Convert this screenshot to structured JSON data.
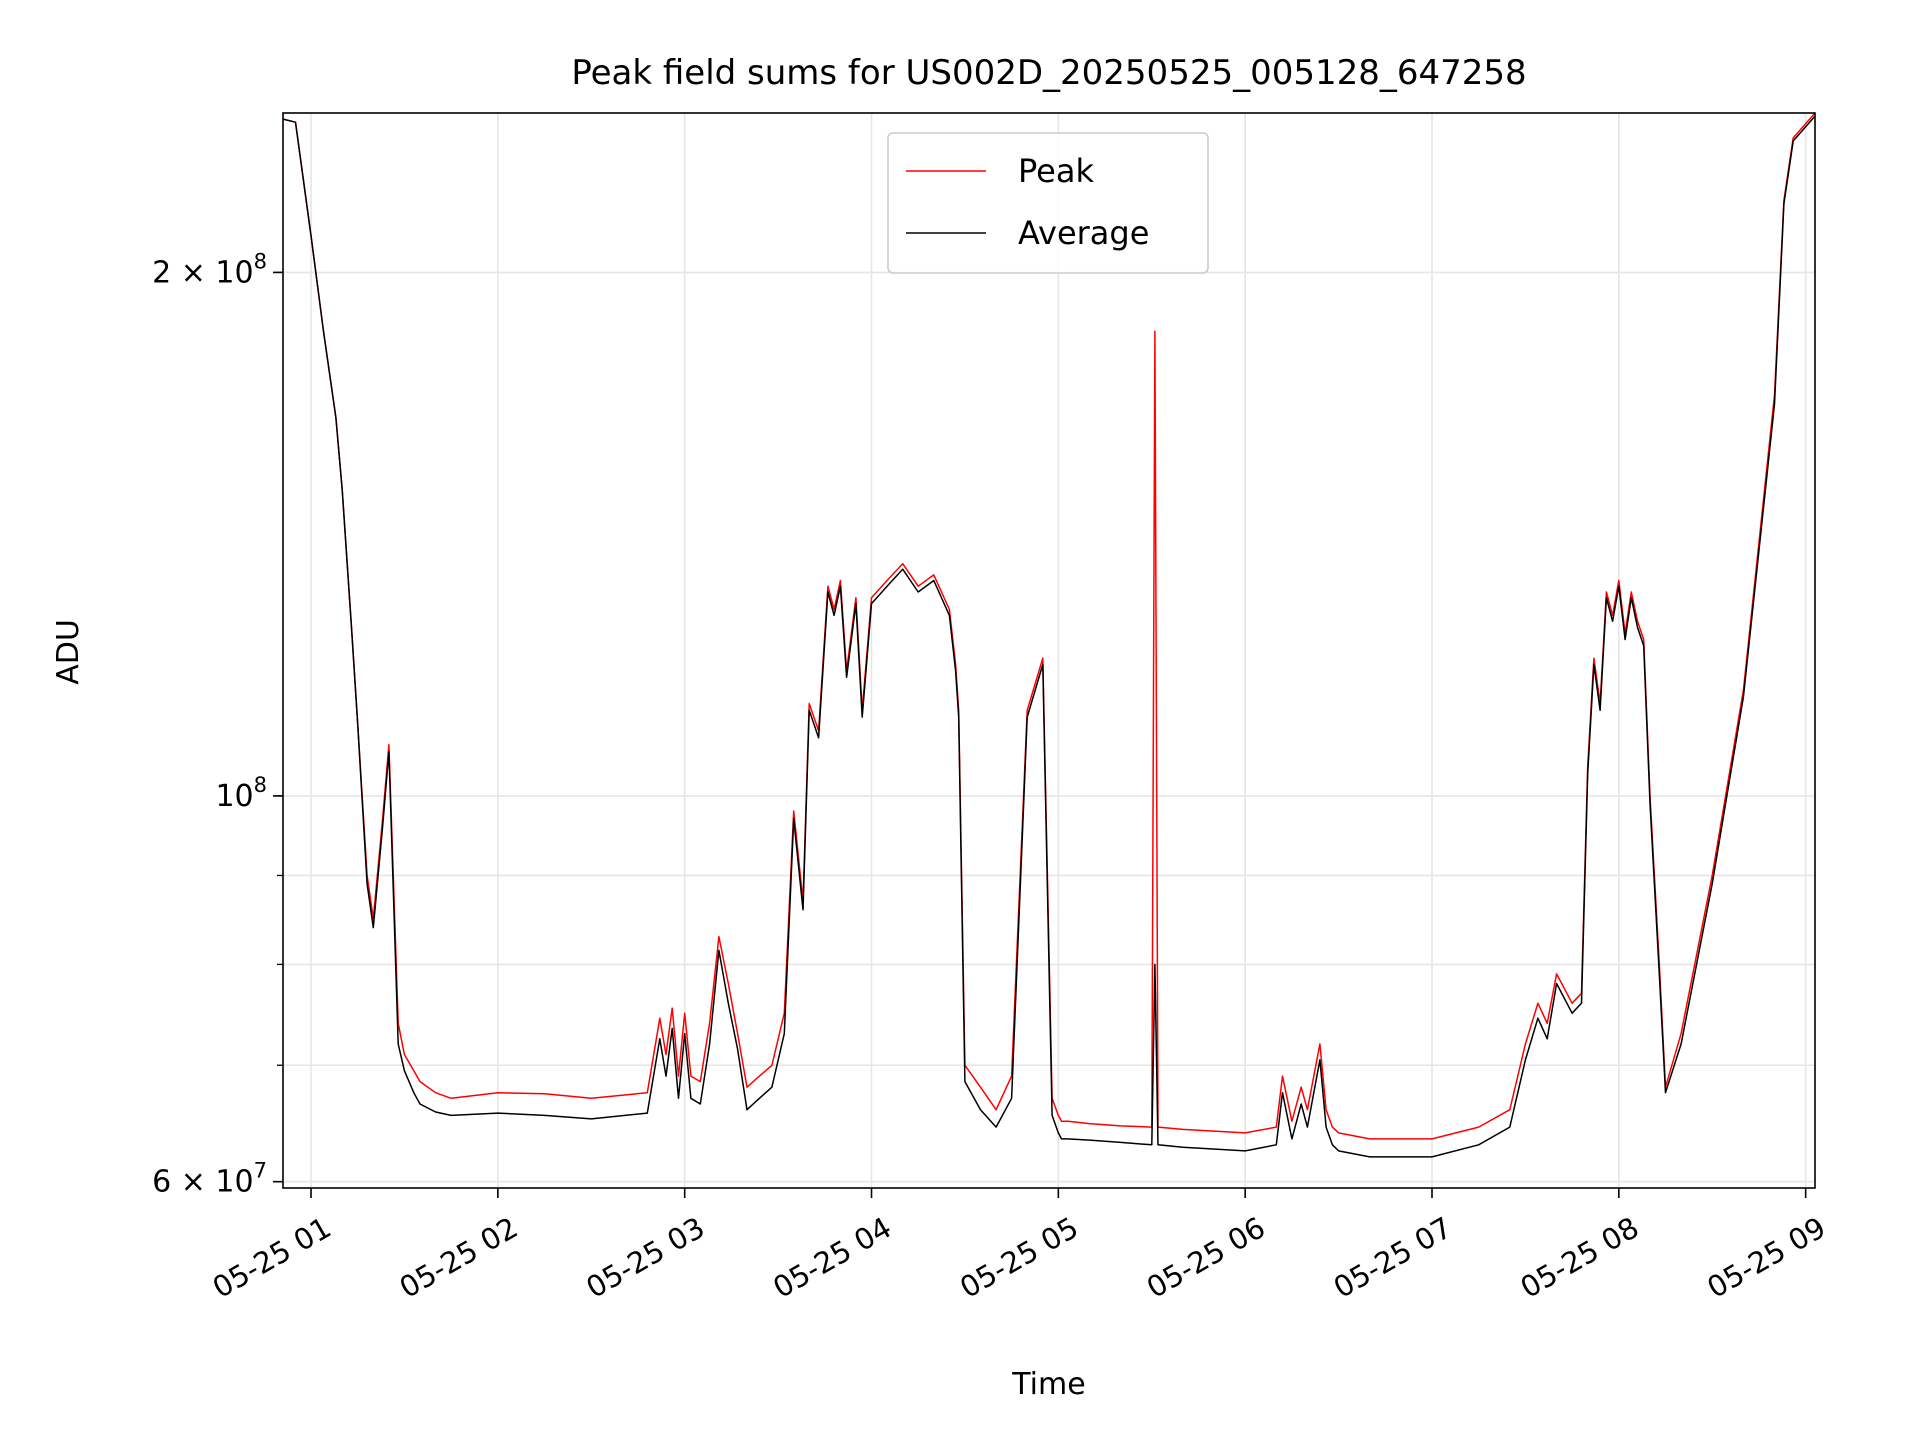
{
  "chart_data": {
    "type": "line",
    "title": "Peak field sums for US002D_20250525_005128_647258",
    "xlabel": "Time",
    "ylabel": "ADU",
    "y_scale": "log",
    "ylim": [
      59500000,
      247000000
    ],
    "xlim": [
      "05-25 00:51",
      "05-25 09:03"
    ],
    "grid": true,
    "legend_position": "upper center",
    "x_ticks": [
      "05-25 01",
      "05-25 02",
      "05-25 03",
      "05-25 04",
      "05-25 05",
      "05-25 06",
      "05-25 07",
      "05-25 08",
      "05-25 09"
    ],
    "y_ticks": [
      {
        "value": 60000000,
        "mantissa": "6",
        "exponent": "7"
      },
      {
        "value": 100000000,
        "mantissa": "",
        "exponent": "8"
      },
      {
        "value": 200000000,
        "mantissa": "2",
        "exponent": "8"
      }
    ],
    "series": [
      {
        "name": "Peak",
        "color": "#ff0000",
        "x": [
          "05-25 00:51",
          "05-25 00:55",
          "05-25 01:00",
          "05-25 01:04",
          "05-25 01:08",
          "05-25 01:10",
          "05-25 01:13",
          "05-25 01:15",
          "05-25 01:18",
          "05-25 01:20",
          "05-25 01:23",
          "05-25 01:25",
          "05-25 01:28",
          "05-25 01:30",
          "05-25 01:33",
          "05-25 01:35",
          "05-25 01:40",
          "05-25 01:45",
          "05-25 02:00",
          "05-25 02:15",
          "05-25 02:30",
          "05-25 02:48",
          "05-25 02:52",
          "05-25 02:54",
          "05-25 02:56",
          "05-25 02:58",
          "05-25 03:00",
          "05-25 03:02",
          "05-25 03:05",
          "05-25 03:08",
          "05-25 03:11",
          "05-25 03:14",
          "05-25 03:17",
          "05-25 03:20",
          "05-25 03:24",
          "05-25 03:28",
          "05-25 03:32",
          "05-25 03:35",
          "05-25 03:38",
          "05-25 03:40",
          "05-25 03:43",
          "05-25 03:46",
          "05-25 03:48",
          "05-25 03:50",
          "05-25 03:52",
          "05-25 03:55",
          "05-25 03:57",
          "05-25 04:00",
          "05-25 04:05",
          "05-25 04:10",
          "05-25 04:15",
          "05-25 04:20",
          "05-25 04:25",
          "05-25 04:27",
          "05-25 04:28",
          "05-25 04:30",
          "05-25 04:35",
          "05-25 04:40",
          "05-25 04:45",
          "05-25 04:50",
          "05-25 04:55",
          "05-25 04:58",
          "05-25 05:00",
          "05-25 05:01",
          "05-25 05:03",
          "05-25 05:10",
          "05-25 05:20",
          "05-25 05:30",
          "05-25 05:31",
          "05-25 05:32",
          "05-25 05:40",
          "05-25 06:00",
          "05-25 06:10",
          "05-25 06:12",
          "05-25 06:15",
          "05-25 06:18",
          "05-25 06:20",
          "05-25 06:24",
          "05-25 06:26",
          "05-25 06:28",
          "05-25 06:30",
          "05-25 06:40",
          "05-25 07:00",
          "05-25 07:15",
          "05-25 07:25",
          "05-25 07:30",
          "05-25 07:34",
          "05-25 07:37",
          "05-25 07:40",
          "05-25 07:45",
          "05-25 07:48",
          "05-25 07:50",
          "05-25 07:52",
          "05-25 07:54",
          "05-25 07:56",
          "05-25 07:58",
          "05-25 08:00",
          "05-25 08:02",
          "05-25 08:04",
          "05-25 08:06",
          "05-25 08:08",
          "05-25 08:10",
          "05-25 08:13",
          "05-25 08:15",
          "05-25 08:20",
          "05-25 08:30",
          "05-25 08:40",
          "05-25 08:50",
          "05-25 08:53",
          "05-25 08:56",
          "05-25 09:03"
        ],
        "values": [
          245000000,
          244000000,
          210000000,
          185000000,
          165000000,
          150000000,
          125000000,
          110000000,
          90000000,
          85000000,
          97000000,
          107000000,
          74000000,
          71000000,
          69500000,
          68500000,
          67500000,
          67000000,
          67500000,
          67400000,
          67000000,
          67500000,
          74500000,
          71000000,
          75500000,
          69000000,
          75000000,
          69000000,
          68500000,
          74000000,
          83000000,
          78000000,
          73000000,
          68000000,
          69000000,
          70000000,
          75000000,
          98000000,
          87000000,
          113000000,
          109000000,
          132000000,
          128000000,
          133000000,
          118000000,
          130000000,
          112000000,
          130000000,
          133000000,
          136000000,
          132000000,
          134000000,
          128000000,
          119000000,
          112000000,
          70000000,
          68000000,
          66000000,
          69000000,
          112000000,
          120000000,
          67000000,
          65500000,
          65000000,
          65000000,
          64800000,
          64600000,
          64500000,
          185000000,
          64500000,
          64300000,
          64000000,
          64500000,
          69000000,
          65000000,
          68000000,
          66000000,
          72000000,
          66000000,
          64500000,
          64000000,
          63500000,
          63500000,
          64500000,
          66000000,
          72000000,
          76000000,
          74000000,
          79000000,
          76000000,
          77000000,
          104000000,
          120000000,
          113000000,
          131000000,
          127000000,
          133000000,
          124000000,
          131000000,
          126000000,
          123000000,
          100000000,
          80000000,
          68000000,
          73000000,
          90000000,
          115000000,
          170000000,
          220000000,
          239000000,
          247000000
        ]
      },
      {
        "name": "Average",
        "color": "#000000",
        "x": [
          "05-25 00:51",
          "05-25 00:55",
          "05-25 01:00",
          "05-25 01:04",
          "05-25 01:08",
          "05-25 01:10",
          "05-25 01:13",
          "05-25 01:15",
          "05-25 01:18",
          "05-25 01:20",
          "05-25 01:23",
          "05-25 01:25",
          "05-25 01:28",
          "05-25 01:30",
          "05-25 01:33",
          "05-25 01:35",
          "05-25 01:40",
          "05-25 01:45",
          "05-25 02:00",
          "05-25 02:15",
          "05-25 02:30",
          "05-25 02:48",
          "05-25 02:52",
          "05-25 02:54",
          "05-25 02:56",
          "05-25 02:58",
          "05-25 03:00",
          "05-25 03:02",
          "05-25 03:05",
          "05-25 03:08",
          "05-25 03:11",
          "05-25 03:14",
          "05-25 03:17",
          "05-25 03:20",
          "05-25 03:24",
          "05-25 03:28",
          "05-25 03:32",
          "05-25 03:35",
          "05-25 03:38",
          "05-25 03:40",
          "05-25 03:43",
          "05-25 03:46",
          "05-25 03:48",
          "05-25 03:50",
          "05-25 03:52",
          "05-25 03:55",
          "05-25 03:57",
          "05-25 04:00",
          "05-25 04:05",
          "05-25 04:10",
          "05-25 04:15",
          "05-25 04:20",
          "05-25 04:25",
          "05-25 04:27",
          "05-25 04:28",
          "05-25 04:30",
          "05-25 04:35",
          "05-25 04:40",
          "05-25 04:45",
          "05-25 04:50",
          "05-25 04:55",
          "05-25 04:58",
          "05-25 05:00",
          "05-25 05:01",
          "05-25 05:03",
          "05-25 05:10",
          "05-25 05:20",
          "05-25 05:30",
          "05-25 05:31",
          "05-25 05:32",
          "05-25 05:40",
          "05-25 06:00",
          "05-25 06:10",
          "05-25 06:12",
          "05-25 06:15",
          "05-25 06:18",
          "05-25 06:20",
          "05-25 06:24",
          "05-25 06:26",
          "05-25 06:28",
          "05-25 06:30",
          "05-25 06:40",
          "05-25 07:00",
          "05-25 07:15",
          "05-25 07:25",
          "05-25 07:30",
          "05-25 07:34",
          "05-25 07:37",
          "05-25 07:40",
          "05-25 07:45",
          "05-25 07:48",
          "05-25 07:50",
          "05-25 07:52",
          "05-25 07:54",
          "05-25 07:56",
          "05-25 07:58",
          "05-25 08:00",
          "05-25 08:02",
          "05-25 08:04",
          "05-25 08:06",
          "05-25 08:08",
          "05-25 08:10",
          "05-25 08:13",
          "05-25 08:15",
          "05-25 08:20",
          "05-25 08:30",
          "05-25 08:40",
          "05-25 08:50",
          "05-25 08:53",
          "05-25 08:56",
          "05-25 09:03"
        ],
        "values": [
          245000000,
          244000000,
          210000000,
          185000000,
          165000000,
          150000000,
          125000000,
          110000000,
          89000000,
          84000000,
          96000000,
          106000000,
          72000000,
          69500000,
          67500000,
          66500000,
          65800000,
          65500000,
          65700000,
          65500000,
          65200000,
          65700000,
          72500000,
          69000000,
          73500000,
          67000000,
          73000000,
          67000000,
          66500000,
          72000000,
          81500000,
          76000000,
          71500000,
          66000000,
          67000000,
          68000000,
          73000000,
          97000000,
          86000000,
          112000000,
          108000000,
          131000000,
          127000000,
          132000000,
          117000000,
          129000000,
          111000000,
          129000000,
          132000000,
          135000000,
          131000000,
          133000000,
          127000000,
          118000000,
          111000000,
          68500000,
          66000000,
          64500000,
          67000000,
          111000000,
          119000000,
          65500000,
          64000000,
          63500000,
          63500000,
          63400000,
          63200000,
          63000000,
          80000000,
          63000000,
          62800000,
          62500000,
          63000000,
          67500000,
          63500000,
          66500000,
          64500000,
          70500000,
          64500000,
          63000000,
          62500000,
          62000000,
          62000000,
          63000000,
          64500000,
          70500000,
          74500000,
          72500000,
          78000000,
          75000000,
          76000000,
          103000000,
          119000000,
          112000000,
          130000000,
          126000000,
          132000000,
          123000000,
          130000000,
          125000000,
          122000000,
          99000000,
          79000000,
          67500000,
          72000000,
          89000000,
          114000000,
          168000000,
          219000000,
          238000000,
          246000000
        ]
      }
    ]
  }
}
